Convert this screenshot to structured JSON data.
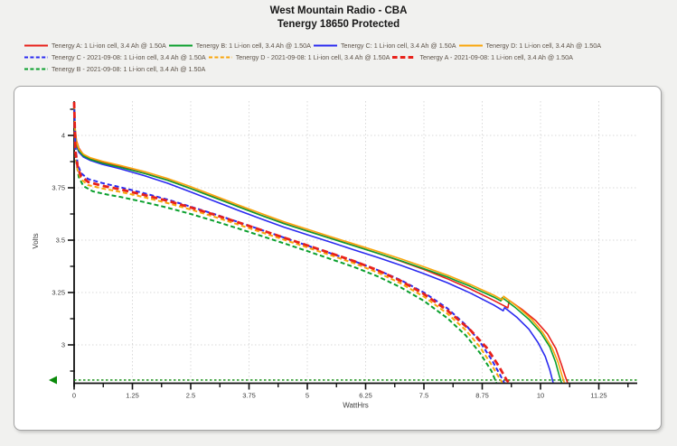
{
  "header": {
    "title1": "West Mountain Radio - CBA",
    "title2": "Tenergy 18650 Protected"
  },
  "colors": {
    "red": "#e8211a",
    "green": "#0aa02d",
    "blue": "#2a2af0",
    "orange": "#f9a50a",
    "cutoff_green": "#0a8a0a",
    "axis": "#111111",
    "grid": "#d9d9d9",
    "legend_text": "#5b5147"
  },
  "chart_data": {
    "type": "line",
    "xlabel": "WattHrs",
    "ylabel": "Volts",
    "xlim": [
      0,
      12.07
    ],
    "ylim": [
      2.815,
      4.165
    ],
    "xticks": [
      "0",
      "1.25",
      "2.5",
      "3.75",
      "5",
      "6.25",
      "7.5",
      "8.75",
      "10",
      "11.25"
    ],
    "xtick_values": [
      0,
      1.25,
      2.5,
      3.75,
      5,
      6.25,
      7.5,
      8.75,
      10,
      11.25
    ],
    "yticks": [
      "4",
      "3.75",
      "3.5",
      "3.25",
      "3"
    ],
    "ytick_values": [
      4,
      3.75,
      3.5,
      3.25,
      3
    ],
    "grid": true,
    "legend_position": "top",
    "cutoff_marker": {
      "volts": 2.83,
      "color": "#0a8a0a"
    },
    "series": [
      {
        "id": "tenergy-a",
        "label": "Tenergy A: 1 Li-ion cell, 3.4 Ah @ 1.50A",
        "color": "#e8211a",
        "dash": null,
        "width": 1.6,
        "draw_order": 2,
        "points": [
          [
            0,
            4.16
          ],
          [
            0.02,
            4.04
          ],
          [
            0.05,
            3.975
          ],
          [
            0.1,
            3.94
          ],
          [
            0.2,
            3.908
          ],
          [
            0.35,
            3.888
          ],
          [
            0.6,
            3.871
          ],
          [
            1,
            3.85
          ],
          [
            1.5,
            3.82
          ],
          [
            2,
            3.787
          ],
          [
            2.5,
            3.747
          ],
          [
            3,
            3.705
          ],
          [
            3.5,
            3.662
          ],
          [
            4,
            3.62
          ],
          [
            4.5,
            3.58
          ],
          [
            5,
            3.544
          ],
          [
            5.5,
            3.509
          ],
          [
            6,
            3.474
          ],
          [
            6.5,
            3.438
          ],
          [
            7,
            3.4
          ],
          [
            7.5,
            3.36
          ],
          [
            8,
            3.316
          ],
          [
            8.5,
            3.267
          ],
          [
            9,
            3.212
          ],
          [
            9.3,
            3.177
          ],
          [
            9.33,
            3.212
          ],
          [
            9.6,
            3.17
          ],
          [
            9.9,
            3.115
          ],
          [
            10.15,
            3.052
          ],
          [
            10.33,
            2.982
          ],
          [
            10.45,
            2.905
          ],
          [
            10.53,
            2.85
          ],
          [
            10.58,
            2.82
          ]
        ]
      },
      {
        "id": "tenergy-b",
        "label": "Tenergy B: 1 Li-ion cell, 3.4 Ah @ 1.50A",
        "color": "#0aa02d",
        "dash": null,
        "width": 1.6,
        "draw_order": 3,
        "points": [
          [
            0,
            4.16
          ],
          [
            0.02,
            4.02
          ],
          [
            0.05,
            3.962
          ],
          [
            0.1,
            3.927
          ],
          [
            0.2,
            3.902
          ],
          [
            0.35,
            3.885
          ],
          [
            0.6,
            3.868
          ],
          [
            1,
            3.847
          ],
          [
            1.5,
            3.819
          ],
          [
            2,
            3.786
          ],
          [
            2.5,
            3.746
          ],
          [
            3,
            3.704
          ],
          [
            3.5,
            3.661
          ],
          [
            4,
            3.619
          ],
          [
            4.5,
            3.579
          ],
          [
            5,
            3.543
          ],
          [
            5.5,
            3.508
          ],
          [
            6,
            3.473
          ],
          [
            6.5,
            3.438
          ],
          [
            7,
            3.402
          ],
          [
            7.5,
            3.364
          ],
          [
            8,
            3.324
          ],
          [
            8.5,
            3.279
          ],
          [
            9,
            3.228
          ],
          [
            9.15,
            3.21
          ],
          [
            9.18,
            3.226
          ],
          [
            9.45,
            3.18
          ],
          [
            9.75,
            3.122
          ],
          [
            10,
            3.06
          ],
          [
            10.2,
            2.99
          ],
          [
            10.32,
            2.92
          ],
          [
            10.4,
            2.855
          ],
          [
            10.45,
            2.82
          ]
        ]
      },
      {
        "id": "tenergy-c",
        "label": "Tenergy C: 1 Li-ion cell, 3.4 Ah @ 1.50A",
        "color": "#2a2af0",
        "dash": null,
        "width": 1.6,
        "draw_order": 1,
        "points": [
          [
            0,
            4.16
          ],
          [
            0.02,
            4.0
          ],
          [
            0.05,
            3.95
          ],
          [
            0.1,
            3.92
          ],
          [
            0.2,
            3.897
          ],
          [
            0.35,
            3.88
          ],
          [
            0.6,
            3.862
          ],
          [
            1,
            3.84
          ],
          [
            1.5,
            3.808
          ],
          [
            2,
            3.772
          ],
          [
            2.5,
            3.73
          ],
          [
            3,
            3.687
          ],
          [
            3.5,
            3.644
          ],
          [
            4,
            3.602
          ],
          [
            4.5,
            3.562
          ],
          [
            5,
            3.526
          ],
          [
            5.5,
            3.49
          ],
          [
            6,
            3.454
          ],
          [
            6.5,
            3.418
          ],
          [
            7,
            3.38
          ],
          [
            7.5,
            3.34
          ],
          [
            8,
            3.297
          ],
          [
            8.5,
            3.247
          ],
          [
            9,
            3.19
          ],
          [
            9.2,
            3.163
          ],
          [
            9.23,
            3.178
          ],
          [
            9.5,
            3.13
          ],
          [
            9.75,
            3.075
          ],
          [
            9.95,
            3.01
          ],
          [
            10.1,
            2.945
          ],
          [
            10.2,
            2.88
          ],
          [
            10.27,
            2.82
          ]
        ]
      },
      {
        "id": "tenergy-d",
        "label": "Tenergy D: 1 Li-ion cell, 3.4 Ah @ 1.50A",
        "color": "#f9a50a",
        "dash": null,
        "width": 1.6,
        "draw_order": 4,
        "points": [
          [
            0,
            4.16
          ],
          [
            0.02,
            4.03
          ],
          [
            0.05,
            3.97
          ],
          [
            0.1,
            3.935
          ],
          [
            0.2,
            3.91
          ],
          [
            0.35,
            3.893
          ],
          [
            0.6,
            3.877
          ],
          [
            1,
            3.856
          ],
          [
            1.5,
            3.828
          ],
          [
            2,
            3.795
          ],
          [
            2.5,
            3.755
          ],
          [
            3,
            3.713
          ],
          [
            3.5,
            3.67
          ],
          [
            4,
            3.628
          ],
          [
            4.5,
            3.588
          ],
          [
            5,
            3.552
          ],
          [
            5.5,
            3.517
          ],
          [
            6,
            3.482
          ],
          [
            6.5,
            3.447
          ],
          [
            7,
            3.411
          ],
          [
            7.5,
            3.373
          ],
          [
            8,
            3.333
          ],
          [
            8.5,
            3.288
          ],
          [
            9,
            3.237
          ],
          [
            9.18,
            3.215
          ],
          [
            9.21,
            3.232
          ],
          [
            9.5,
            3.183
          ],
          [
            9.8,
            3.124
          ],
          [
            10.05,
            3.058
          ],
          [
            10.25,
            2.985
          ],
          [
            10.38,
            2.915
          ],
          [
            10.46,
            2.855
          ],
          [
            10.51,
            2.82
          ]
        ]
      },
      {
        "id": "tenergy-c-2021-09-08",
        "label": "Tenergy C - 2021-09-08: 1 Li-ion cell, 3.4 Ah @ 1.50A",
        "color": "#2a2af0",
        "dash": [
          5,
          3
        ],
        "width": 2,
        "draw_order": 7,
        "points": [
          [
            0,
            4.16
          ],
          [
            0.03,
            3.94
          ],
          [
            0.08,
            3.86
          ],
          [
            0.15,
            3.82
          ],
          [
            0.3,
            3.792
          ],
          [
            0.6,
            3.773
          ],
          [
            1,
            3.752
          ],
          [
            1.5,
            3.724
          ],
          [
            2,
            3.694
          ],
          [
            2.5,
            3.66
          ],
          [
            3,
            3.625
          ],
          [
            3.5,
            3.588
          ],
          [
            4,
            3.55
          ],
          [
            4.5,
            3.512
          ],
          [
            5,
            3.474
          ],
          [
            5.5,
            3.437
          ],
          [
            6,
            3.4
          ],
          [
            6.5,
            3.358
          ],
          [
            7,
            3.31
          ],
          [
            7.5,
            3.25
          ],
          [
            8,
            3.175
          ],
          [
            8.4,
            3.095
          ],
          [
            8.7,
            3.015
          ],
          [
            8.95,
            2.93
          ],
          [
            9.15,
            2.85
          ],
          [
            9.22,
            2.82
          ]
        ]
      },
      {
        "id": "tenergy-d-2021-09-08",
        "label": "Tenergy D - 2021-09-08: 1 Li-ion cell, 3.4 Ah @ 1.50A",
        "color": "#f9a50a",
        "dash": [
          5,
          3
        ],
        "width": 2,
        "draw_order": 6,
        "points": [
          [
            0,
            4.16
          ],
          [
            0.03,
            3.9
          ],
          [
            0.08,
            3.83
          ],
          [
            0.15,
            3.79
          ],
          [
            0.3,
            3.763
          ],
          [
            0.6,
            3.747
          ],
          [
            1,
            3.73
          ],
          [
            1.5,
            3.705
          ],
          [
            2,
            3.677
          ],
          [
            2.5,
            3.646
          ],
          [
            3,
            3.612
          ],
          [
            3.5,
            3.576
          ],
          [
            4,
            3.539
          ],
          [
            4.5,
            3.502
          ],
          [
            5,
            3.465
          ],
          [
            5.5,
            3.428
          ],
          [
            6,
            3.39
          ],
          [
            6.5,
            3.346
          ],
          [
            7,
            3.294
          ],
          [
            7.5,
            3.23
          ],
          [
            8,
            3.15
          ],
          [
            8.4,
            3.07
          ],
          [
            8.7,
            2.99
          ],
          [
            8.95,
            2.905
          ],
          [
            9.12,
            2.84
          ],
          [
            9.18,
            2.82
          ]
        ]
      },
      {
        "id": "tenergy-a-2021-09-08",
        "label": "Tenergy A - 2021-09-08: 1 Li-ion cell, 3.4 Ah @ 1.50A",
        "color": "#e8211a",
        "dash": [
          7,
          4
        ],
        "width": 2.8,
        "draw_order": 8,
        "points": [
          [
            0,
            4.16
          ],
          [
            0.03,
            3.92
          ],
          [
            0.08,
            3.845
          ],
          [
            0.15,
            3.805
          ],
          [
            0.3,
            3.778
          ],
          [
            0.6,
            3.76
          ],
          [
            1,
            3.742
          ],
          [
            1.5,
            3.716
          ],
          [
            2,
            3.688
          ],
          [
            2.5,
            3.656
          ],
          [
            3,
            3.622
          ],
          [
            3.5,
            3.586
          ],
          [
            4,
            3.549
          ],
          [
            4.5,
            3.512
          ],
          [
            5,
            3.475
          ],
          [
            5.5,
            3.438
          ],
          [
            6,
            3.4
          ],
          [
            6.5,
            3.357
          ],
          [
            7,
            3.306
          ],
          [
            7.5,
            3.243
          ],
          [
            8,
            3.165
          ],
          [
            8.5,
            3.07
          ],
          [
            8.85,
            2.985
          ],
          [
            9.1,
            2.9
          ],
          [
            9.28,
            2.83
          ],
          [
            9.33,
            2.82
          ]
        ]
      },
      {
        "id": "tenergy-b-2021-09-08",
        "label": "Tenergy B - 2021-09-08: 1 Li-ion cell, 3.4 Ah @ 1.50A",
        "color": "#0aa02d",
        "dash": [
          5,
          3
        ],
        "width": 2,
        "draw_order": 5,
        "points": [
          [
            0,
            4.16
          ],
          [
            0.04,
            3.88
          ],
          [
            0.1,
            3.8
          ],
          [
            0.2,
            3.758
          ],
          [
            0.4,
            3.733
          ],
          [
            0.7,
            3.718
          ],
          [
            1,
            3.706
          ],
          [
            1.5,
            3.682
          ],
          [
            2,
            3.655
          ],
          [
            2.5,
            3.625
          ],
          [
            3,
            3.592
          ],
          [
            3.5,
            3.557
          ],
          [
            4,
            3.521
          ],
          [
            4.5,
            3.485
          ],
          [
            5,
            3.448
          ],
          [
            5.5,
            3.41
          ],
          [
            6,
            3.372
          ],
          [
            6.5,
            3.328
          ],
          [
            7,
            3.275
          ],
          [
            7.5,
            3.21
          ],
          [
            8,
            3.128
          ],
          [
            8.4,
            3.045
          ],
          [
            8.7,
            2.962
          ],
          [
            8.95,
            2.875
          ],
          [
            9.05,
            2.82
          ]
        ]
      }
    ]
  }
}
